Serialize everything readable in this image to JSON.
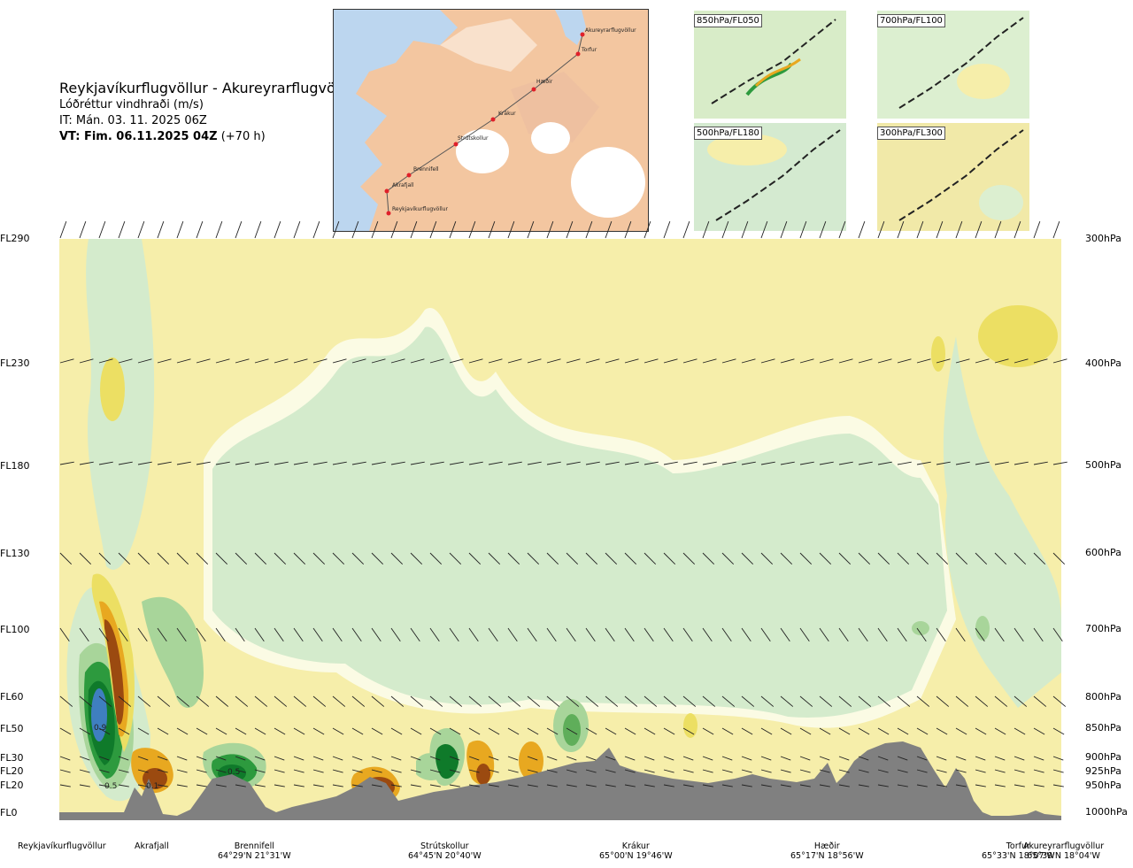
{
  "title": {
    "route": "Reykjavíkurflugvöllur - Akureyrarflugvöllur",
    "variable": "Lóðréttur vindhraði (m/s)",
    "issue_time": "IT: Mán. 03. 11. 2025 06Z",
    "valid_time": "VT: Fim. 06.11.2025 04Z",
    "lead": "(+70 h)"
  },
  "map_labels": [
    "Akureyrarflugvöllur",
    "Torfur",
    "Hæðir",
    "Krákur",
    "Strútskollur",
    "Brennifell",
    "Akrafjall",
    "Reykjavíkurflugvöllur"
  ],
  "mini_maps": [
    {
      "label": "850hPa/FL050",
      "tint": "#d8ecc8"
    },
    {
      "label": "700hPa/FL100",
      "tint": "#dcefd0"
    },
    {
      "label": "500hPa/FL180",
      "tint": "#d4ead0"
    },
    {
      "label": "300hPa/FL300",
      "tint": "#f1e9a8"
    }
  ],
  "flight_levels": [
    "FL290",
    "FL230",
    "FL180",
    "FL130",
    "FL100",
    "FL60",
    "FL50",
    "FL30",
    "FL20",
    "FL20",
    "FL0"
  ],
  "pressure_levels": [
    "300hPa",
    "400hPa",
    "500hPa",
    "600hPa",
    "700hPa",
    "800hPa",
    "850hPa",
    "900hPa",
    "925hPa",
    "950hPa",
    "1000hPa"
  ],
  "contour_labels": [
    "0.9",
    "0.5",
    "0.1",
    "0.5"
  ],
  "stations": [
    {
      "name": "Reykjavíkurflugvöllur",
      "coord": ""
    },
    {
      "name": "Akrafjall",
      "coord": ""
    },
    {
      "name": "Brennifell",
      "coord": "64°29'N 21°31'W"
    },
    {
      "name": "Strútskollur",
      "coord": "64°45'N 20°40'W"
    },
    {
      "name": "Krákur",
      "coord": "65°00'N 19°46'W"
    },
    {
      "name": "Hæðir",
      "coord": "65°17'N 18°56'W"
    },
    {
      "name": "Torfur",
      "coord": "65°33'N 18°07'W"
    },
    {
      "name": "Akureyrarflugvöllur",
      "coord": "65°39'N 18°04'W"
    }
  ],
  "colors": {
    "light_yellow": "#f6eeaa",
    "pale_green": "#d4ebcc",
    "mid_green": "#a8d59a",
    "dark_green": "#2d9a3e",
    "deep_green": "#0f7a2a",
    "blue": "#3f7fc0",
    "orange": "#e8a820",
    "brown": "#9b4a10",
    "terrain": "#808080"
  }
}
